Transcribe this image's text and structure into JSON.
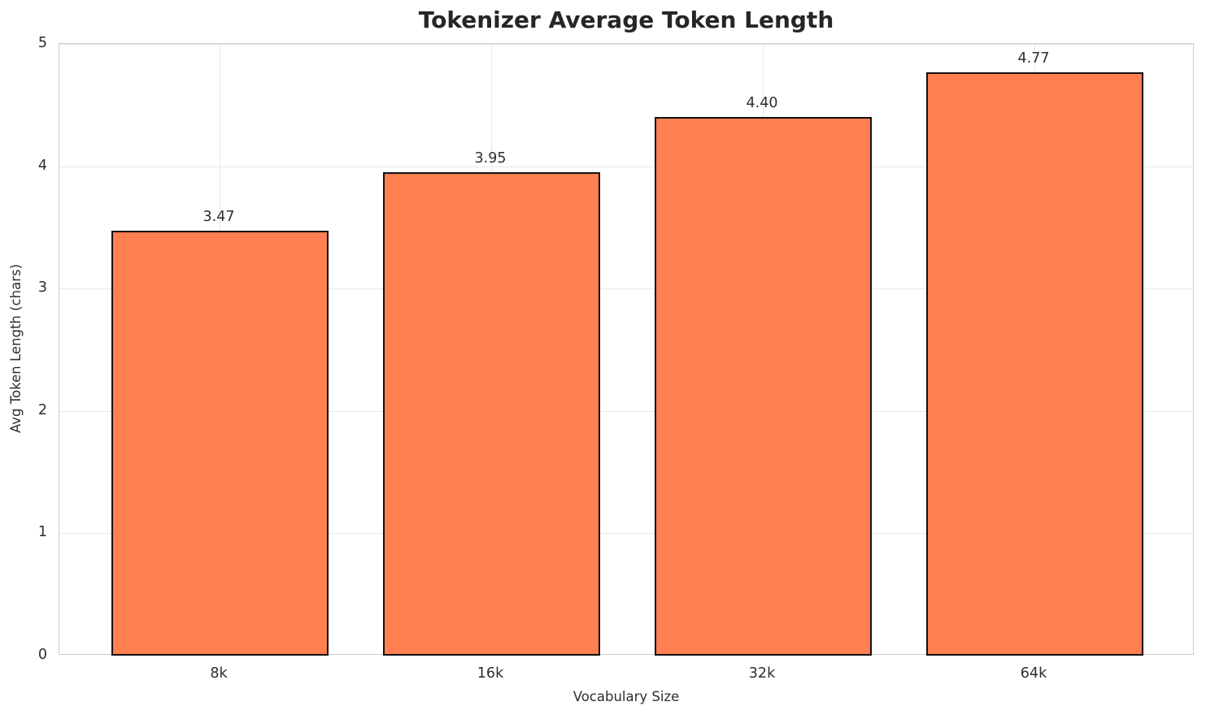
{
  "chart_data": {
    "type": "bar",
    "title": "Tokenizer Average Token Length",
    "xlabel": "Vocabulary Size",
    "ylabel": "Avg Token Length (chars)",
    "categories": [
      "8k",
      "16k",
      "32k",
      "64k"
    ],
    "values": [
      3.47,
      3.95,
      4.4,
      4.77
    ],
    "value_labels": [
      "3.47",
      "3.95",
      "4.40",
      "4.77"
    ],
    "ylim": [
      0,
      5
    ],
    "yticks": [
      0,
      1,
      2,
      3,
      4,
      5
    ],
    "grid": true,
    "legend_position": "none",
    "bar_color": "#FF7F50",
    "bar_edge_color": "#111111",
    "title_color": "#262626",
    "tick_label_color": "#2e2e2e"
  }
}
